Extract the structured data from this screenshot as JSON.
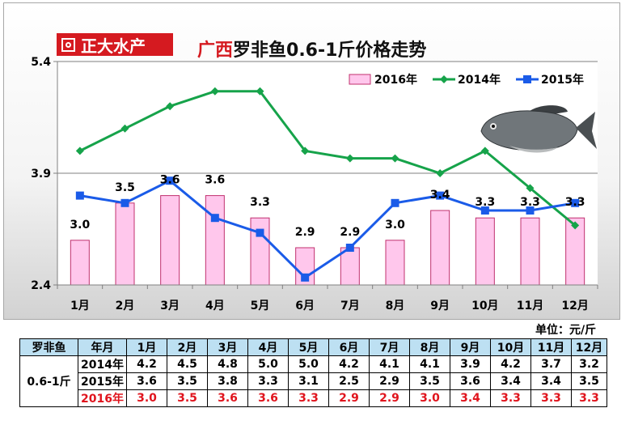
{
  "logo": {
    "text": "正大水产",
    "icon": "logo-square-circle-icon"
  },
  "title": {
    "region": "广西",
    "rest": "罗非鱼0.6-1斤价格走势"
  },
  "unit": "单位：元/斤",
  "chart_data": {
    "type": "bar+line",
    "categories": [
      "1月",
      "2月",
      "3月",
      "4月",
      "5月",
      "6月",
      "7月",
      "8月",
      "9月",
      "10月",
      "11月",
      "12月"
    ],
    "ylim": [
      2.4,
      5.4
    ],
    "yticks": [
      "2.4",
      "3.9",
      "5.4"
    ],
    "legend_position": "top-right",
    "series": [
      {
        "name": "2016年",
        "type": "bar",
        "color": "#ffc7ec",
        "values": [
          3.0,
          3.5,
          3.6,
          3.6,
          3.3,
          2.9,
          2.9,
          3.0,
          3.4,
          3.3,
          3.3,
          3.3
        ],
        "labels": [
          "3.0",
          "3.5",
          "3.6",
          "3.6",
          "3.3",
          "2.9",
          "2.9",
          "3.0",
          "3.4",
          "3.3",
          "3.3",
          "3.3"
        ]
      },
      {
        "name": "2014年",
        "type": "line",
        "color": "#16a34a",
        "values": [
          4.2,
          4.5,
          4.8,
          5.0,
          5.0,
          4.2,
          4.1,
          4.1,
          3.9,
          4.2,
          3.7,
          3.2
        ]
      },
      {
        "name": "2015年",
        "type": "line",
        "color": "#1a5be8",
        "values": [
          3.6,
          3.5,
          3.8,
          3.3,
          3.1,
          2.5,
          2.9,
          3.5,
          3.6,
          3.4,
          3.4,
          3.5
        ]
      }
    ]
  },
  "table": {
    "corner": "罗非鱼",
    "size": "0.6-1斤",
    "header": "年月",
    "months": [
      "1月",
      "2月",
      "3月",
      "4月",
      "5月",
      "6月",
      "7月",
      "8月",
      "9月",
      "10月",
      "11月",
      "12月"
    ],
    "rows": [
      {
        "year": "2014年",
        "values": [
          "4.2",
          "4.5",
          "4.8",
          "5.0",
          "5.0",
          "4.2",
          "4.1",
          "4.1",
          "3.9",
          "4.2",
          "3.7",
          "3.2"
        ]
      },
      {
        "year": "2015年",
        "values": [
          "3.6",
          "3.5",
          "3.8",
          "3.3",
          "3.1",
          "2.5",
          "2.9",
          "3.5",
          "3.6",
          "3.4",
          "3.4",
          "3.5"
        ]
      },
      {
        "year": "2016年",
        "values": [
          "3.0",
          "3.5",
          "3.6",
          "3.6",
          "3.3",
          "2.9",
          "2.9",
          "3.0",
          "3.4",
          "3.3",
          "3.3",
          "3.3"
        ]
      }
    ]
  }
}
